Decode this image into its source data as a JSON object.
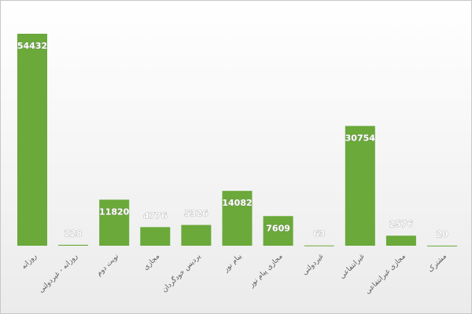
{
  "chart_data": {
    "type": "bar",
    "categories": [
      "روزانه",
      "روزانه - غیردولتی",
      "نوبت دوم",
      "مجازی",
      "پردیس خودگردان",
      "پیام نور",
      "مجازی پیام نور",
      "غیردولتی",
      "غیرانتفاعی",
      "مجازی غیرانتفاعی",
      "مشترک"
    ],
    "values": [
      54432,
      228,
      11820,
      4776,
      5326,
      14082,
      7609,
      63,
      30754,
      2576,
      20
    ],
    "color": "#6aa93a"
  }
}
